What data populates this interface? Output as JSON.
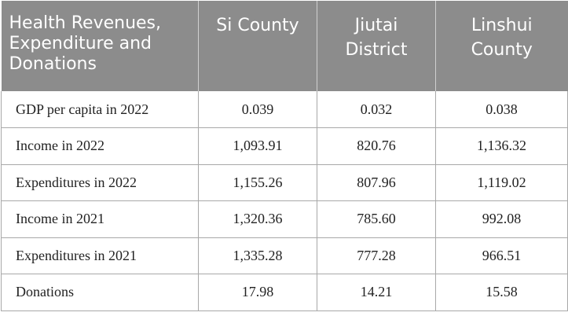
{
  "table": {
    "headers": [
      "Health Revenues, Expenditure and Donations",
      "Si County",
      "Jiutai District",
      "Linshui County"
    ],
    "rows": [
      {
        "label": "GDP per capita in 2022",
        "values": [
          "0.039",
          "0.032",
          "0.038"
        ]
      },
      {
        "label": "Income in 2022",
        "values": [
          "1,093.91",
          "820.76",
          "1,136.32"
        ]
      },
      {
        "label": "Expenditures in 2022",
        "values": [
          "1,155.26",
          "807.96",
          "1,119.02"
        ]
      },
      {
        "label": "Income in 2021",
        "values": [
          "1,320.36",
          "785.60",
          "992.08"
        ]
      },
      {
        "label": "Expenditures in 2021",
        "values": [
          "1,335.28",
          "777.28",
          "966.51"
        ]
      },
      {
        "label": "Donations",
        "values": [
          "17.98",
          "14.21",
          "15.58"
        ]
      }
    ]
  },
  "colors": {
    "header_background": "#8c8c8c",
    "header_text": "#ffffff",
    "body_text": "#222222",
    "grid_line": "#a8a8a8"
  }
}
